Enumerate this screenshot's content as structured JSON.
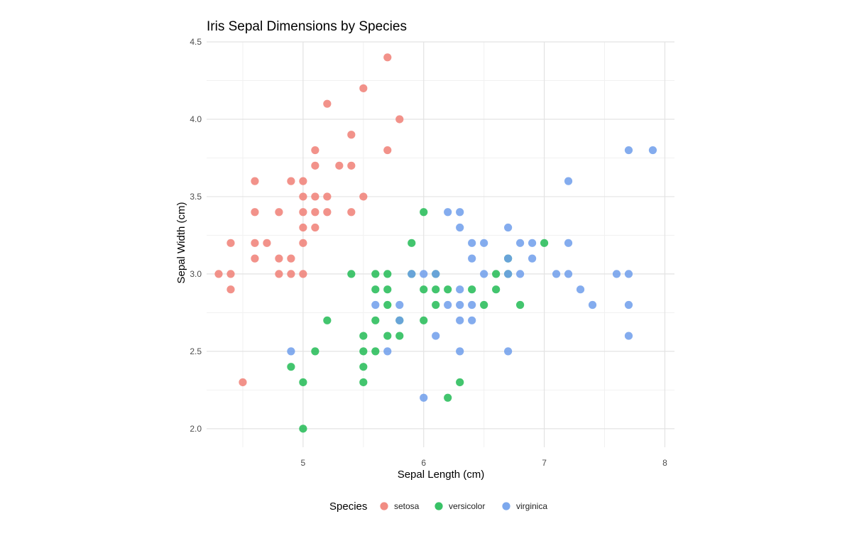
{
  "chart_data": {
    "type": "scatter",
    "title": "Iris Sepal Dimensions by Species",
    "xlabel": "Sepal Length (cm)",
    "ylabel": "Sepal Width (cm)",
    "xlim": [
      4.2,
      8.08
    ],
    "ylim": [
      1.88,
      4.5
    ],
    "x_ticks": [
      5,
      6,
      7,
      8
    ],
    "x_tick_labels": [
      "5",
      "6",
      "7",
      "8"
    ],
    "y_ticks": [
      2.0,
      2.5,
      3.0,
      3.5,
      4.0,
      4.5
    ],
    "y_tick_labels": [
      "2.0",
      "2.5",
      "3.0",
      "3.5",
      "4.0",
      "4.5"
    ],
    "grid": true,
    "legend": {
      "title": "Species",
      "position": "bottom"
    },
    "series": [
      {
        "name": "setosa",
        "color": "#F07F76",
        "points": [
          [
            4.3,
            3.0
          ],
          [
            4.4,
            3.0
          ],
          [
            4.4,
            2.9
          ],
          [
            4.4,
            3.2
          ],
          [
            4.5,
            2.3
          ],
          [
            4.6,
            3.6
          ],
          [
            4.6,
            3.4
          ],
          [
            4.6,
            3.2
          ],
          [
            4.6,
            3.1
          ],
          [
            4.7,
            3.2
          ],
          [
            4.8,
            3.4
          ],
          [
            4.8,
            3.1
          ],
          [
            4.8,
            3.0
          ],
          [
            4.9,
            3.6
          ],
          [
            4.9,
            3.1
          ],
          [
            4.9,
            3.0
          ],
          [
            5.0,
            3.6
          ],
          [
            5.0,
            3.5
          ],
          [
            5.0,
            3.4
          ],
          [
            5.0,
            3.3
          ],
          [
            5.0,
            3.2
          ],
          [
            5.0,
            3.0
          ],
          [
            5.1,
            3.8
          ],
          [
            5.1,
            3.7
          ],
          [
            5.1,
            3.5
          ],
          [
            5.1,
            3.4
          ],
          [
            5.1,
            3.3
          ],
          [
            5.2,
            4.1
          ],
          [
            5.2,
            3.5
          ],
          [
            5.2,
            3.4
          ],
          [
            5.3,
            3.7
          ],
          [
            5.4,
            3.9
          ],
          [
            5.4,
            3.7
          ],
          [
            5.4,
            3.4
          ],
          [
            5.5,
            4.2
          ],
          [
            5.5,
            3.5
          ],
          [
            5.7,
            4.4
          ],
          [
            5.7,
            3.8
          ],
          [
            5.8,
            4.0
          ]
        ]
      },
      {
        "name": "versicolor",
        "color": "#22BB55",
        "points": [
          [
            4.9,
            2.4
          ],
          [
            5.0,
            2.3
          ],
          [
            5.0,
            2.0
          ],
          [
            5.1,
            2.5
          ],
          [
            5.2,
            2.7
          ],
          [
            5.4,
            3.0
          ],
          [
            5.5,
            2.6
          ],
          [
            5.5,
            2.5
          ],
          [
            5.5,
            2.4
          ],
          [
            5.5,
            2.3
          ],
          [
            5.6,
            3.0
          ],
          [
            5.6,
            2.9
          ],
          [
            5.6,
            2.7
          ],
          [
            5.6,
            2.5
          ],
          [
            5.7,
            3.0
          ],
          [
            5.7,
            2.9
          ],
          [
            5.7,
            2.8
          ],
          [
            5.7,
            2.6
          ],
          [
            5.8,
            2.7
          ],
          [
            5.8,
            2.6
          ],
          [
            5.9,
            3.2
          ],
          [
            5.9,
            3.0
          ],
          [
            6.0,
            3.4
          ],
          [
            6.0,
            2.9
          ],
          [
            6.0,
            2.7
          ],
          [
            6.1,
            3.0
          ],
          [
            6.1,
            2.9
          ],
          [
            6.1,
            2.8
          ],
          [
            6.2,
            2.9
          ],
          [
            6.2,
            2.2
          ],
          [
            6.3,
            2.3
          ],
          [
            6.4,
            2.9
          ],
          [
            6.5,
            2.8
          ],
          [
            6.6,
            3.0
          ],
          [
            6.6,
            2.9
          ],
          [
            6.7,
            3.1
          ],
          [
            6.7,
            3.0
          ],
          [
            6.8,
            2.8
          ],
          [
            7.0,
            3.2
          ]
        ]
      },
      {
        "name": "virginica",
        "color": "#6E9EEB",
        "points": [
          [
            4.9,
            2.5
          ],
          [
            5.6,
            2.8
          ],
          [
            5.7,
            2.5
          ],
          [
            5.8,
            2.8
          ],
          [
            5.8,
            2.7
          ],
          [
            5.9,
            3.0
          ],
          [
            6.0,
            3.0
          ],
          [
            6.0,
            2.2
          ],
          [
            6.1,
            3.0
          ],
          [
            6.1,
            2.6
          ],
          [
            6.2,
            3.4
          ],
          [
            6.2,
            2.8
          ],
          [
            6.3,
            3.4
          ],
          [
            6.3,
            3.3
          ],
          [
            6.3,
            2.9
          ],
          [
            6.3,
            2.8
          ],
          [
            6.3,
            2.7
          ],
          [
            6.3,
            2.5
          ],
          [
            6.4,
            3.2
          ],
          [
            6.4,
            3.1
          ],
          [
            6.4,
            2.8
          ],
          [
            6.4,
            2.7
          ],
          [
            6.5,
            3.2
          ],
          [
            6.5,
            3.0
          ],
          [
            6.7,
            3.3
          ],
          [
            6.7,
            3.1
          ],
          [
            6.7,
            3.0
          ],
          [
            6.7,
            2.5
          ],
          [
            6.8,
            3.2
          ],
          [
            6.8,
            3.0
          ],
          [
            6.9,
            3.2
          ],
          [
            6.9,
            3.1
          ],
          [
            7.1,
            3.0
          ],
          [
            7.2,
            3.6
          ],
          [
            7.2,
            3.2
          ],
          [
            7.2,
            3.0
          ],
          [
            7.3,
            2.9
          ],
          [
            7.4,
            2.8
          ],
          [
            7.6,
            3.0
          ],
          [
            7.7,
            3.8
          ],
          [
            7.7,
            3.0
          ],
          [
            7.7,
            2.8
          ],
          [
            7.7,
            2.6
          ],
          [
            7.9,
            3.8
          ]
        ]
      }
    ]
  }
}
